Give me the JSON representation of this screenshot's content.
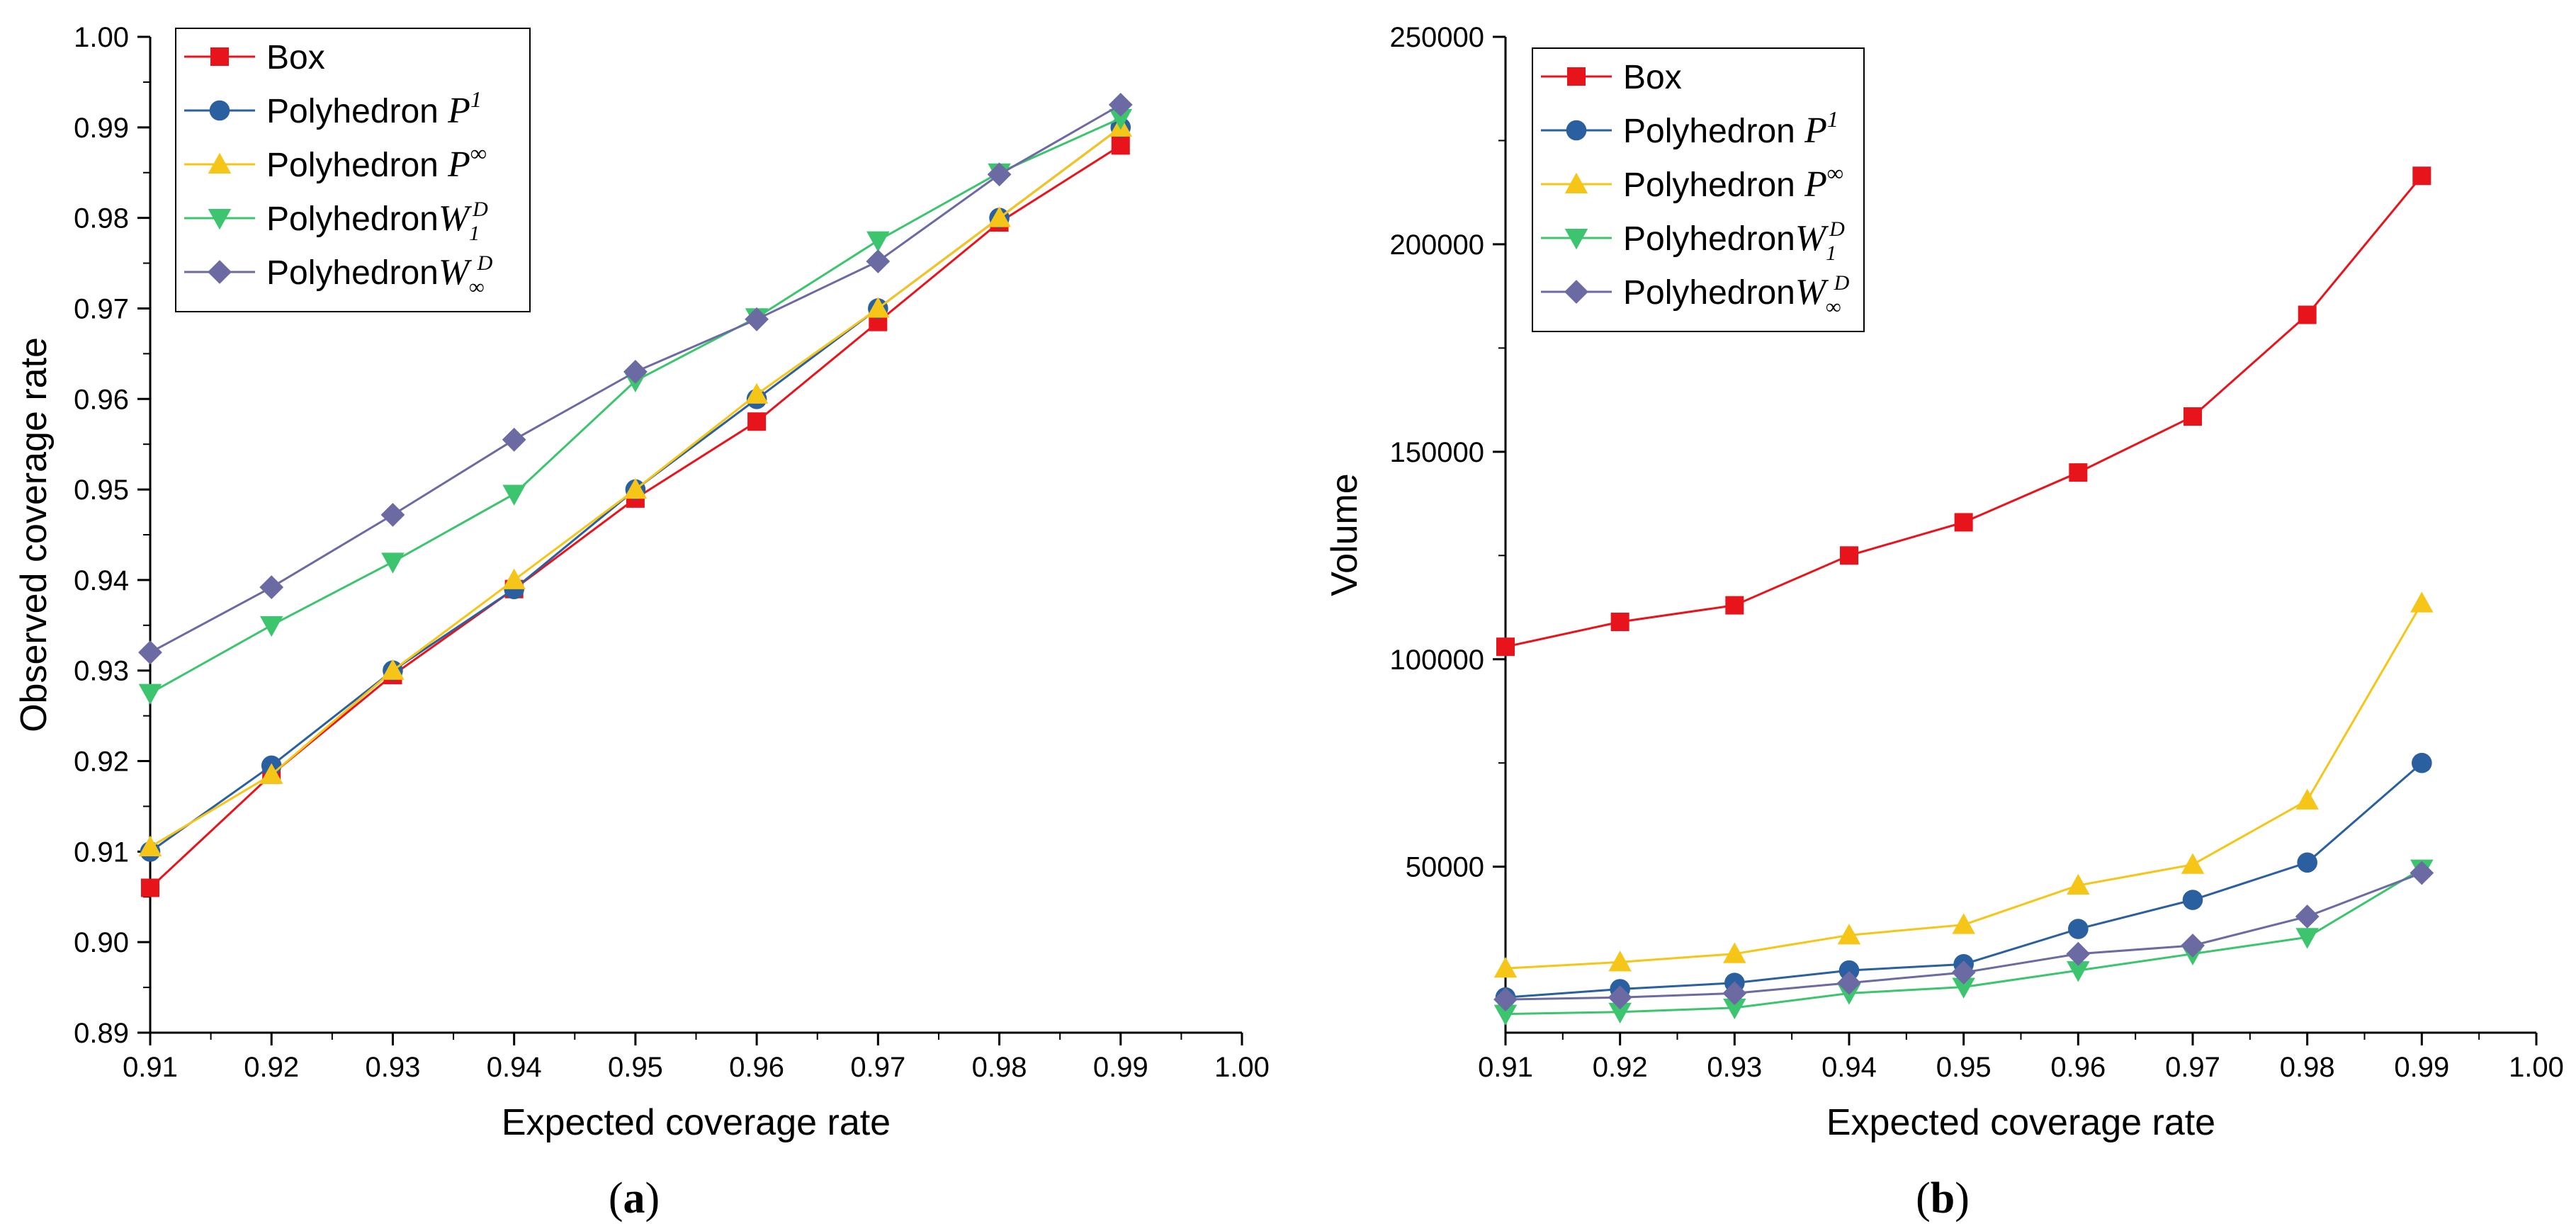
{
  "chart_data": [
    {
      "type": "line",
      "panel": "(a)",
      "panel_letter": "a",
      "xlabel": "Expected coverage rate",
      "ylabel": "Observed coverage rate",
      "xlim": [
        0.91,
        1.0
      ],
      "ylim": [
        0.89,
        1.0
      ],
      "xticks": [
        "0.91",
        "0.92",
        "0.93",
        "0.94",
        "0.95",
        "0.96",
        "0.97",
        "0.98",
        "0.99",
        "1.00"
      ],
      "yticks": [
        "0.89",
        "0.90",
        "0.91",
        "0.92",
        "0.93",
        "0.94",
        "0.95",
        "0.96",
        "0.97",
        "0.98",
        "0.99",
        "1.00"
      ],
      "legend_position": "top-left",
      "x": [
        0.91,
        0.92,
        0.93,
        0.94,
        0.95,
        0.96,
        0.97,
        0.98,
        0.99
      ],
      "series": [
        {
          "name": "Box",
          "math": "",
          "color": "#e8141c",
          "marker": "square",
          "values": [
            0.906,
            0.9185,
            0.9295,
            0.939,
            0.949,
            0.9575,
            0.9685,
            0.9795,
            0.988
          ]
        },
        {
          "name": "Polyhedron ",
          "math": "P",
          "sup": "1",
          "sub": "",
          "color": "#2a5fa0",
          "marker": "circle",
          "values": [
            0.91,
            0.9195,
            0.93,
            0.939,
            0.95,
            0.96,
            0.97,
            0.98,
            0.99
          ]
        },
        {
          "name": "Polyhedron ",
          "math": "P",
          "sup": "∞",
          "sub": "",
          "color": "#f5c518",
          "marker": "triangle-up",
          "values": [
            0.9105,
            0.9185,
            0.93,
            0.94,
            0.95,
            0.9605,
            0.97,
            0.98,
            0.99
          ]
        },
        {
          "name": "Polyhedron",
          "math": "W",
          "sup": "D",
          "sub": "1",
          "color": "#3cc46e",
          "marker": "triangle-down",
          "values": [
            0.9275,
            0.935,
            0.942,
            0.9495,
            0.962,
            0.969,
            0.9775,
            0.985,
            0.991
          ]
        },
        {
          "name": "Polyhedron",
          "math": "W",
          "sup": "D",
          "sub": "∞",
          "color": "#6b6aa3",
          "marker": "diamond",
          "values": [
            0.932,
            0.9392,
            0.9472,
            0.9555,
            0.963,
            0.9688,
            0.9752,
            0.9848,
            0.9925
          ]
        }
      ]
    },
    {
      "type": "line",
      "panel": "(b)",
      "panel_letter": "b",
      "xlabel": "Expected coverage rate",
      "ylabel": "Volume",
      "xlim": [
        0.91,
        1.0
      ],
      "ylim": [
        10000,
        250000
      ],
      "xticks": [
        "0.91",
        "0.92",
        "0.93",
        "0.94",
        "0.95",
        "0.96",
        "0.97",
        "0.98",
        "0.99",
        "1.00"
      ],
      "yticks": [
        "50000",
        "100000",
        "150000",
        "200000",
        "250000"
      ],
      "legend_position": "top-left",
      "x": [
        0.91,
        0.92,
        0.93,
        0.94,
        0.95,
        0.96,
        0.97,
        0.98,
        0.99
      ],
      "series": [
        {
          "name": "Box",
          "math": "",
          "color": "#e8141c",
          "marker": "square",
          "values": [
            103000,
            109000,
            113000,
            125000,
            133000,
            145000,
            158500,
            183000,
            216500
          ]
        },
        {
          "name": "Polyhedron ",
          "math": "P",
          "sup": "1",
          "sub": "",
          "color": "#2a5fa0",
          "marker": "circle",
          "values": [
            18500,
            20500,
            22000,
            25000,
            26500,
            35000,
            42000,
            51000,
            75000
          ]
        },
        {
          "name": "Polyhedron ",
          "math": "P",
          "sup": "∞",
          "sub": "",
          "color": "#f5c518",
          "marker": "triangle-up",
          "values": [
            25500,
            27000,
            29000,
            33500,
            36000,
            45500,
            50500,
            66000,
            113500
          ]
        },
        {
          "name": "Polyhedron",
          "math": "W",
          "sup": "D",
          "sub": "1",
          "color": "#3cc46e",
          "marker": "triangle-down",
          "values": [
            14500,
            15000,
            16000,
            19500,
            21000,
            25000,
            29000,
            33000,
            49500
          ]
        },
        {
          "name": "Polyhedron",
          "math": "W",
          "sup": "D",
          "sub": "∞",
          "color": "#6b6aa3",
          "marker": "diamond",
          "values": [
            18000,
            18500,
            19500,
            22000,
            24500,
            29000,
            31000,
            38000,
            48500
          ]
        }
      ]
    }
  ]
}
